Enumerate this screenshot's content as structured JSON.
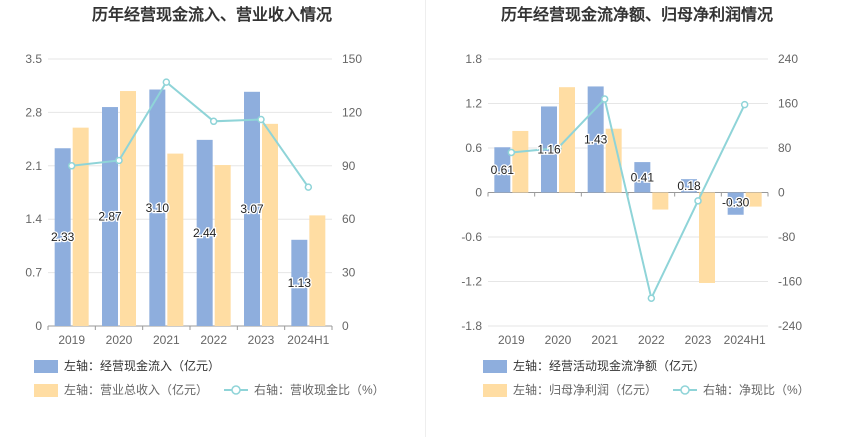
{
  "colors": {
    "bar_primary": "#8eaedd",
    "bar_secondary": "#ffdda3",
    "line": "#8fd4d8",
    "grid": "#e6e6e6",
    "axis_text": "#666666",
    "title": "#333333"
  },
  "chart_data": [
    {
      "type": "bar",
      "title": "历年经营现金流入、营业收入情况",
      "categories": [
        "2019",
        "2020",
        "2021",
        "2022",
        "2023",
        "2024H1"
      ],
      "y_left": {
        "ylim": [
          0,
          3.5
        ],
        "ticks": [
          "0",
          "0.7",
          "1.4",
          "2.1",
          "2.8",
          "3.5"
        ]
      },
      "y_right": {
        "ylim": [
          0,
          150
        ],
        "ticks": [
          "0",
          "30",
          "60",
          "90",
          "120",
          "150"
        ]
      },
      "series": [
        {
          "name": "左轴：经营现金流入（亿元）",
          "type": "bar",
          "axis": "left",
          "values": [
            2.33,
            2.87,
            3.1,
            2.44,
            3.07,
            1.13
          ],
          "labels": [
            "2.33",
            "2.87",
            "3.10",
            "2.44",
            "3.07",
            "1.13"
          ]
        },
        {
          "name": "左轴：营业总收入（亿元）",
          "type": "bar",
          "axis": "left",
          "values": [
            2.6,
            3.08,
            2.26,
            2.11,
            2.65,
            1.45
          ]
        },
        {
          "name": "右轴：营收现金比（%）",
          "type": "line",
          "axis": "right",
          "values": [
            90,
            93,
            137,
            115,
            116,
            78
          ]
        }
      ],
      "legend_position": "bottom"
    },
    {
      "type": "bar",
      "title": "历年经营现金流净额、归母净利润情况",
      "categories": [
        "2019",
        "2020",
        "2021",
        "2022",
        "2023",
        "2024H1"
      ],
      "y_left": {
        "ylim": [
          -1.8,
          1.8
        ],
        "ticks": [
          "-1.8",
          "-1.2",
          "-0.6",
          "0",
          "0.6",
          "1.2",
          "1.8"
        ]
      },
      "y_right": {
        "ylim": [
          -240,
          240
        ],
        "ticks": [
          "-240",
          "-160",
          "-80",
          "0",
          "80",
          "160",
          "240"
        ]
      },
      "series": [
        {
          "name": "左轴：经营活动现金流净额（亿元）",
          "type": "bar",
          "axis": "left",
          "values": [
            0.61,
            1.16,
            1.43,
            0.41,
            0.18,
            -0.3
          ],
          "labels": [
            "0.61",
            "1.16",
            "1.43",
            "0.41",
            "0.18",
            "-0.30"
          ]
        },
        {
          "name": "左轴：归母净利润（亿元）",
          "type": "bar",
          "axis": "left",
          "values": [
            0.83,
            1.42,
            0.86,
            -0.23,
            -1.22,
            -0.19
          ]
        },
        {
          "name": "右轴：净现比（%）",
          "type": "line",
          "axis": "right",
          "values": [
            72,
            80,
            168,
            -190,
            -15,
            158
          ]
        }
      ],
      "legend_position": "bottom"
    }
  ]
}
